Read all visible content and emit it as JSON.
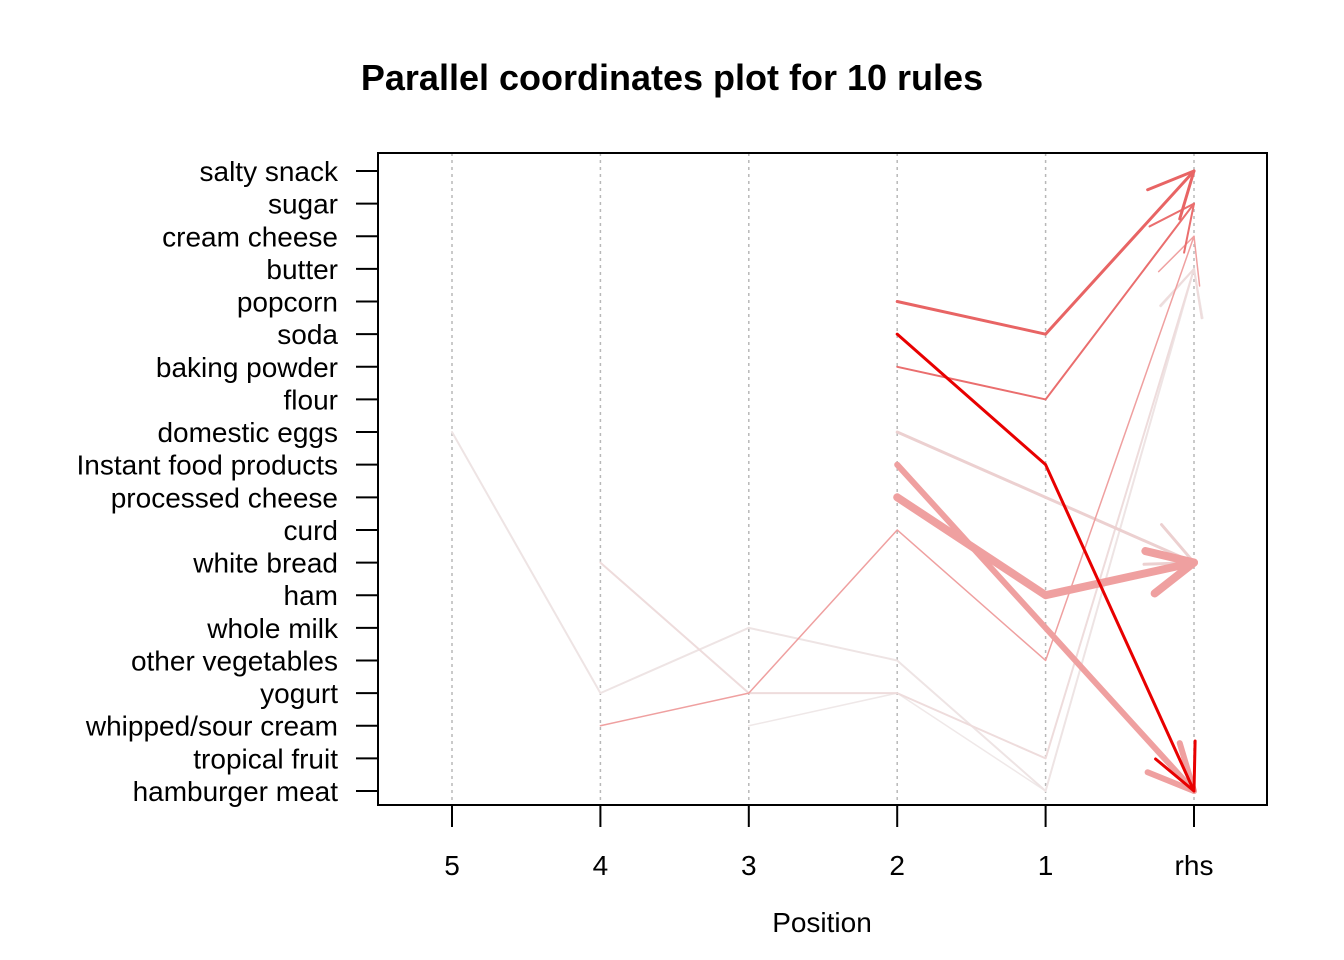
{
  "chart_data": {
    "type": "parallel-coordinates",
    "title": "Parallel coordinates plot for 10 rules",
    "xlabel": "Position",
    "positions": [
      "5",
      "4",
      "3",
      "2",
      "1",
      "rhs"
    ],
    "items": [
      "salty snack",
      "sugar",
      "cream cheese ",
      "butter",
      "popcorn",
      "soda",
      "baking powder",
      "flour",
      "domestic eggs",
      "Instant food products",
      "processed cheese",
      "curd",
      "white bread",
      "ham",
      "whole milk",
      "other vegetables",
      "yogurt",
      "whipped/sour cream",
      "tropical fruit",
      "hamburger meat"
    ],
    "rules": [
      {
        "path": [
          "popcorn",
          "soda",
          "salty snack"
        ],
        "color": "#e86464",
        "width": 3
      },
      {
        "path": [
          "baking powder",
          "flour",
          "sugar"
        ],
        "color": "#ea6e6e",
        "width": 2
      },
      {
        "path": [
          "soda",
          "Instant food products",
          "hamburger meat"
        ],
        "color": "#e80000",
        "width": 3
      },
      {
        "path": [
          "Instant food products",
          "whole milk",
          "hamburger meat"
        ],
        "color": "#efa0a0",
        "width": 6
      },
      {
        "path": [
          "processed cheese",
          "ham",
          "white bread"
        ],
        "color": "#efa0a0",
        "width": 8
      },
      {
        "path": [
          "domestic eggs",
          "processed cheese",
          "white bread"
        ],
        "color": "#ecd0d0",
        "width": 3
      },
      {
        "path": [
          "whipped/sour cream",
          "yogurt",
          "curd",
          "other vegetables",
          "cream cheese "
        ],
        "color": "#efa0a0",
        "width": 1.5
      },
      {
        "path": [
          "white bread",
          "yogurt",
          "yogurt",
          "tropical fruit",
          "butter"
        ],
        "color": "#eedcdc",
        "width": 2
      },
      {
        "path": [
          "domestic eggs",
          "yogurt",
          "whole milk",
          "other vegetables",
          "hamburger meat",
          "butter"
        ],
        "color": "#eee4e4",
        "width": 2
      },
      {
        "path": [
          "whipped/sour cream",
          "yogurt",
          "hamburger meat",
          "butter"
        ],
        "color": "#efe8e8",
        "width": 1.5
      }
    ],
    "grid": true
  }
}
